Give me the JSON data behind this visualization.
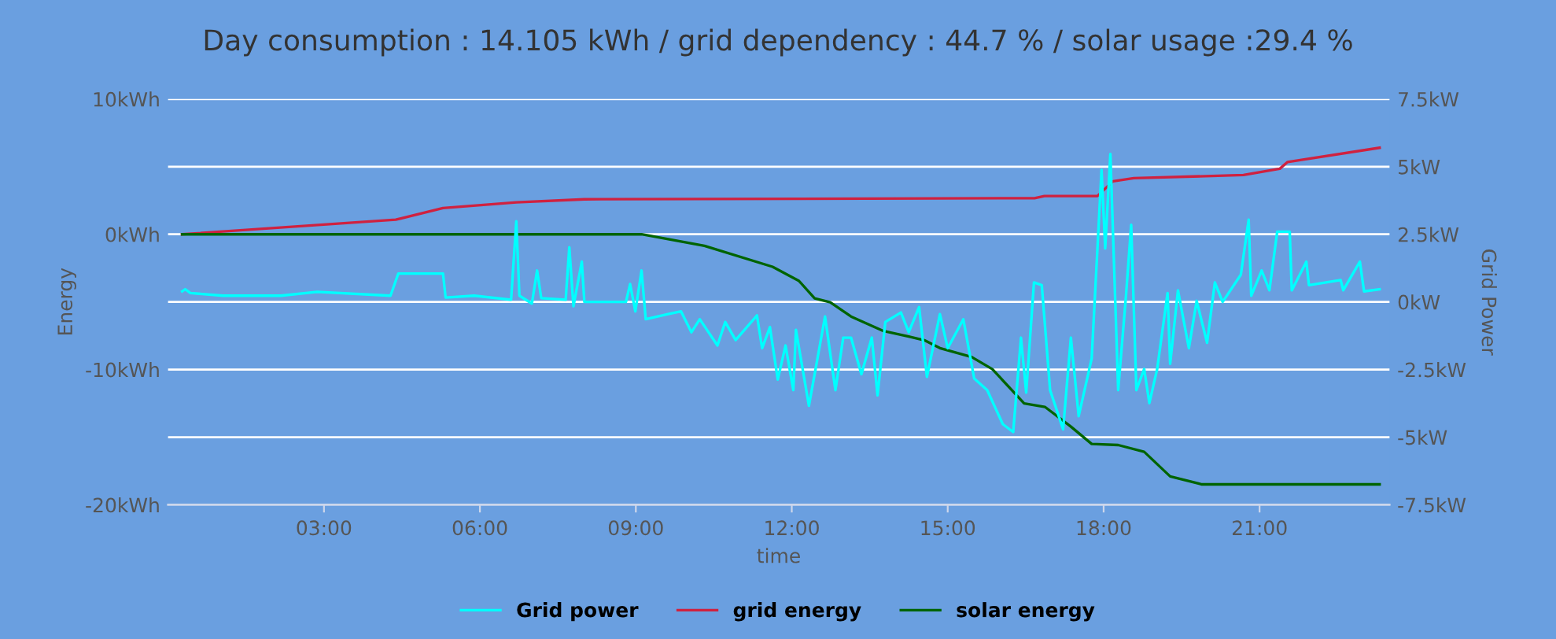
{
  "chart_data": {
    "type": "line",
    "title": "Day consumption : 14.105 kWh / grid dependency : 44.7 % / solar usage :29.4 %",
    "xlabel": "time",
    "ylabel": "Energy",
    "y2label": "Grid Power",
    "xlim": [
      0,
      23.5
    ],
    "xticks": [
      {
        "value": 3,
        "label": "03:00"
      },
      {
        "value": 6,
        "label": "06:00"
      },
      {
        "value": 9,
        "label": "09:00"
      },
      {
        "value": 12,
        "label": "12:00"
      },
      {
        "value": 15,
        "label": "15:00"
      },
      {
        "value": 18,
        "label": "18:00"
      },
      {
        "value": 21,
        "label": "21:00"
      }
    ],
    "ylim": [
      -20,
      10
    ],
    "yticks": [
      {
        "value": 10,
        "label": "10kWh"
      },
      {
        "value": 5,
        "label": null
      },
      {
        "value": 0,
        "label": "0kWh"
      },
      {
        "value": -5,
        "label": null
      },
      {
        "value": -10,
        "label": "-10kWh"
      },
      {
        "value": -15,
        "label": null
      },
      {
        "value": -20,
        "label": "-20kWh"
      }
    ],
    "y2lim": [
      -7.5,
      7.5
    ],
    "y2ticks": [
      {
        "value": 7.5,
        "label": "7.5kW"
      },
      {
        "value": 5,
        "label": "5kW"
      },
      {
        "value": 2.5,
        "label": "2.5kW"
      },
      {
        "value": 0,
        "label": "0kW"
      },
      {
        "value": -2.5,
        "label": "-2.5kW"
      },
      {
        "value": -5,
        "label": "-5kW"
      },
      {
        "value": -7.5,
        "label": "-7.5kW"
      }
    ],
    "grid": "y",
    "legend": "bottom",
    "marker": "none",
    "line_style": "solid",
    "series": [
      {
        "name": "Grid power",
        "color": "#00ffff",
        "axis": "y2",
        "x": [
          0.27,
          0.33,
          0.43,
          1.06,
          2.17,
          2.87,
          4.28,
          4.43,
          5.29,
          5.34,
          5.89,
          6.6,
          6.7,
          6.76,
          7.0,
          7.1,
          7.18,
          7.65,
          7.72,
          7.8,
          7.96,
          8.01,
          8.81,
          8.89,
          8.99,
          9.11,
          9.19,
          9.62,
          9.87,
          10.07,
          10.23,
          10.57,
          10.72,
          10.92,
          11.33,
          11.43,
          11.58,
          11.73,
          11.88,
          12.03,
          12.08,
          12.33,
          12.64,
          12.84,
          12.99,
          13.14,
          13.34,
          13.54,
          13.65,
          13.8,
          14.1,
          14.25,
          14.45,
          14.6,
          14.85,
          15.0,
          15.3,
          15.51,
          15.76,
          16.06,
          16.26,
          16.41,
          16.51,
          16.66,
          16.81,
          16.97,
          17.22,
          17.37,
          17.52,
          17.77,
          17.96,
          18.03,
          18.13,
          18.28,
          18.43,
          18.53,
          18.63,
          18.78,
          18.88,
          19.03,
          19.23,
          19.28,
          19.43,
          19.64,
          19.79,
          19.99,
          20.14,
          20.29,
          20.64,
          20.79,
          20.84,
          21.04,
          21.19,
          21.34,
          21.58,
          21.62,
          21.9,
          21.95,
          22.56,
          22.61,
          22.93,
          23.01,
          23.31
        ],
        "values": [
          0.39,
          0.47,
          0.33,
          0.23,
          0.23,
          0.37,
          0.23,
          1.05,
          1.05,
          0.16,
          0.23,
          0.08,
          2.98,
          0.23,
          -0.06,
          1.16,
          0.14,
          0.08,
          2.02,
          -0.16,
          1.49,
          0,
          0,
          0.66,
          -0.35,
          1.16,
          -0.64,
          -0.45,
          -0.35,
          -1.12,
          -0.64,
          -1.61,
          -0.74,
          -1.41,
          -0.5,
          -1.71,
          -0.93,
          -2.87,
          -1.61,
          -3.26,
          -1.03,
          -3.84,
          -0.54,
          -3.26,
          -1.32,
          -1.32,
          -2.67,
          -1.32,
          -3.45,
          -0.74,
          -0.39,
          -1.12,
          -0.19,
          -2.77,
          -0.45,
          -1.71,
          -0.64,
          -2.83,
          -3.26,
          -4.52,
          -4.81,
          -1.32,
          -3.35,
          0.72,
          0.62,
          -3.26,
          -4.71,
          -1.32,
          -4.22,
          -2.09,
          4.88,
          1.98,
          5.47,
          -3.26,
          0.23,
          2.85,
          -3.26,
          -2.48,
          -3.74,
          -2.48,
          0.33,
          -2.29,
          0.43,
          -1.71,
          0.04,
          -1.51,
          0.72,
          0,
          1.01,
          3.04,
          0.23,
          1.16,
          0.43,
          2.6,
          2.6,
          0.43,
          1.49,
          0.62,
          0.81,
          0.43,
          1.49,
          0.39,
          0.47
        ]
      },
      {
        "name": "grid energy",
        "color": "#d0213f",
        "x": [
          0.27,
          4.38,
          5.29,
          6.7,
          8.01,
          16.67,
          16.86,
          17.88,
          18.18,
          18.58,
          20.69,
          21.39,
          21.54,
          23.31
        ],
        "values": [
          0,
          1.08,
          1.94,
          2.36,
          2.59,
          2.67,
          2.83,
          2.83,
          3.92,
          4.15,
          4.38,
          4.85,
          5.35,
          6.4
        ]
      },
      {
        "name": "solar energy",
        "color": "#006400",
        "x": [
          0.27,
          8.1,
          9.11,
          10.32,
          11.63,
          12.14,
          12.44,
          12.74,
          13.14,
          13.75,
          14.25,
          14.55,
          14.85,
          15.46,
          15.86,
          16.47,
          16.87,
          17.37,
          17.77,
          18.28,
          18.78,
          19.28,
          19.89,
          23.31
        ],
        "values": [
          0,
          0,
          0,
          -0.85,
          -2.4,
          -3.45,
          -4.73,
          -5.03,
          -6.08,
          -7.13,
          -7.56,
          -7.83,
          -8.41,
          -9.07,
          -9.97,
          -12.5,
          -12.76,
          -14.22,
          -15.5,
          -15.58,
          -16.08,
          -17.9,
          -18.49,
          -18.49
        ]
      }
    ]
  }
}
